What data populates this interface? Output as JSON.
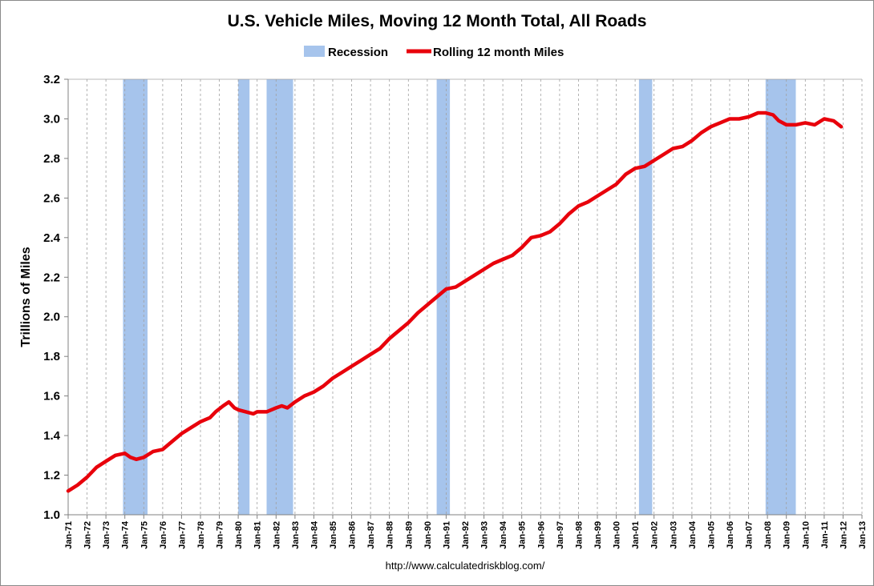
{
  "chart_data": {
    "type": "line",
    "title": "U.S. Vehicle Miles, Moving 12 Month Total, All Roads",
    "xlabel": "",
    "ylabel": "Trillions of Miles",
    "source": "http://www.calculatedriskblog.com/",
    "ylim": [
      1.0,
      3.2
    ],
    "yticks": [
      1.0,
      1.2,
      1.4,
      1.6,
      1.8,
      2.0,
      2.2,
      2.4,
      2.6,
      2.8,
      3.0,
      3.2
    ],
    "xlim": [
      1971.0,
      2013.0
    ],
    "xticks": [
      "Jan-71",
      "Jan-72",
      "Jan-73",
      "Jan-74",
      "Jan-75",
      "Jan-76",
      "Jan-77",
      "Jan-78",
      "Jan-79",
      "Jan-80",
      "Jan-81",
      "Jan-82",
      "Jan-83",
      "Jan-84",
      "Jan-85",
      "Jan-86",
      "Jan-87",
      "Jan-88",
      "Jan-89",
      "Jan-90",
      "Jan-91",
      "Jan-92",
      "Jan-93",
      "Jan-94",
      "Jan-95",
      "Jan-96",
      "Jan-97",
      "Jan-98",
      "Jan-99",
      "Jan-00",
      "Jan-01",
      "Jan-02",
      "Jan-03",
      "Jan-04",
      "Jan-05",
      "Jan-06",
      "Jan-07",
      "Jan-08",
      "Jan-09",
      "Jan-10",
      "Jan-11",
      "Jan-12",
      "Jan-13"
    ],
    "grid": "vertical dashed",
    "legend": "top-center",
    "legend_entries": [
      "Recession",
      "Rolling 12 month Miles"
    ],
    "colors": {
      "recession": "#a6c4ec",
      "line": "#e8000b",
      "grid": "#a0a0a0",
      "axis": "#808080"
    },
    "recessions": [
      {
        "start": 1973.9,
        "end": 1975.2
      },
      {
        "start": 1980.0,
        "end": 1980.6
      },
      {
        "start": 1981.5,
        "end": 1982.9
      },
      {
        "start": 1990.5,
        "end": 1991.2
      },
      {
        "start": 2001.2,
        "end": 2001.9
      },
      {
        "start": 2007.9,
        "end": 2009.5
      }
    ],
    "series": [
      {
        "name": "Rolling 12 month Miles",
        "x": [
          1971.0,
          1971.5,
          1972.0,
          1972.5,
          1973.0,
          1973.5,
          1974.0,
          1974.3,
          1974.6,
          1975.0,
          1975.5,
          1976.0,
          1976.5,
          1977.0,
          1977.5,
          1978.0,
          1978.5,
          1978.8,
          1979.2,
          1979.5,
          1979.8,
          1980.0,
          1980.4,
          1980.8,
          1981.0,
          1981.5,
          1982.0,
          1982.3,
          1982.6,
          1983.0,
          1983.5,
          1984.0,
          1984.5,
          1985.0,
          1985.5,
          1986.0,
          1986.5,
          1987.0,
          1987.5,
          1988.0,
          1988.5,
          1989.0,
          1989.5,
          1990.0,
          1990.5,
          1991.0,
          1991.5,
          1992.0,
          1992.5,
          1993.0,
          1993.5,
          1994.0,
          1994.5,
          1995.0,
          1995.5,
          1996.0,
          1996.5,
          1997.0,
          1997.5,
          1998.0,
          1998.5,
          1999.0,
          1999.5,
          2000.0,
          2000.5,
          2001.0,
          2001.5,
          2002.0,
          2002.5,
          2003.0,
          2003.5,
          2004.0,
          2004.5,
          2005.0,
          2005.5,
          2006.0,
          2006.5,
          2007.0,
          2007.5,
          2007.9,
          2008.3,
          2008.6,
          2009.0,
          2009.5,
          2010.0,
          2010.5,
          2011.0,
          2011.5,
          2011.9
        ],
        "y": [
          1.12,
          1.15,
          1.19,
          1.24,
          1.27,
          1.3,
          1.31,
          1.29,
          1.28,
          1.29,
          1.32,
          1.33,
          1.37,
          1.41,
          1.44,
          1.47,
          1.49,
          1.52,
          1.55,
          1.57,
          1.54,
          1.53,
          1.52,
          1.51,
          1.52,
          1.52,
          1.54,
          1.55,
          1.54,
          1.57,
          1.6,
          1.62,
          1.65,
          1.69,
          1.72,
          1.75,
          1.78,
          1.81,
          1.84,
          1.89,
          1.93,
          1.97,
          2.02,
          2.06,
          2.1,
          2.14,
          2.15,
          2.18,
          2.21,
          2.24,
          2.27,
          2.29,
          2.31,
          2.35,
          2.4,
          2.41,
          2.43,
          2.47,
          2.52,
          2.56,
          2.58,
          2.61,
          2.64,
          2.67,
          2.72,
          2.75,
          2.76,
          2.79,
          2.82,
          2.85,
          2.86,
          2.89,
          2.93,
          2.96,
          2.98,
          3.0,
          3.0,
          3.01,
          3.03,
          3.03,
          3.02,
          2.99,
          2.97,
          2.97,
          2.98,
          2.97,
          3.0,
          2.99,
          2.96
        ]
      }
    ]
  }
}
